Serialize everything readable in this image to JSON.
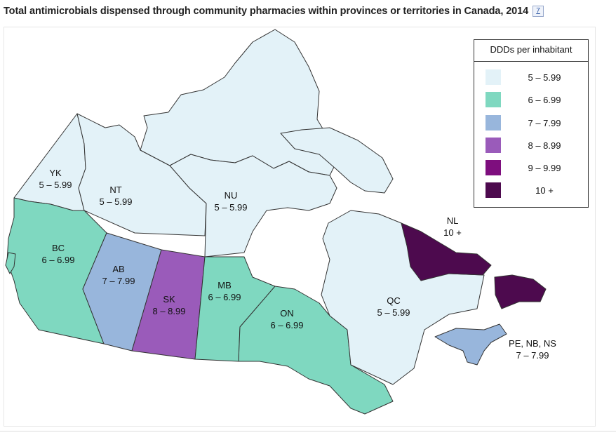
{
  "title": "Total antimicrobials dispensed through community pharmacies within provinces or territories in Canada, 2014",
  "reference_badge": "7",
  "legend": {
    "title": "DDDs per inhabitant",
    "items": [
      {
        "label": "5 – 5.99",
        "color": "#e3f2f8"
      },
      {
        "label": "6 – 6.99",
        "color": "#7fd8c0"
      },
      {
        "label": "7 – 7.99",
        "color": "#98b6dc"
      },
      {
        "label": "8 – 8.99",
        "color": "#9a5bba"
      },
      {
        "label": "9 – 9.99",
        "color": "#7e0e7e"
      },
      {
        "label": "10 +",
        "color": "#4d0a4e"
      }
    ]
  },
  "regions": [
    {
      "code": "YK",
      "value": "5 – 5.99"
    },
    {
      "code": "NT",
      "value": "5 – 5.99"
    },
    {
      "code": "NU",
      "value": "5 – 5.99"
    },
    {
      "code": "BC",
      "value": "6 – 6.99"
    },
    {
      "code": "AB",
      "value": "7 – 7.99"
    },
    {
      "code": "SK",
      "value": "8 – 8.99"
    },
    {
      "code": "MB",
      "value": "6 – 6.99"
    },
    {
      "code": "ON",
      "value": "6 – 6.99"
    },
    {
      "code": "QC",
      "value": "5 – 5.99"
    },
    {
      "code": "NL",
      "value": "10 +"
    },
    {
      "code": "PE, NB, NS",
      "value": "7 – 7.99"
    }
  ]
}
